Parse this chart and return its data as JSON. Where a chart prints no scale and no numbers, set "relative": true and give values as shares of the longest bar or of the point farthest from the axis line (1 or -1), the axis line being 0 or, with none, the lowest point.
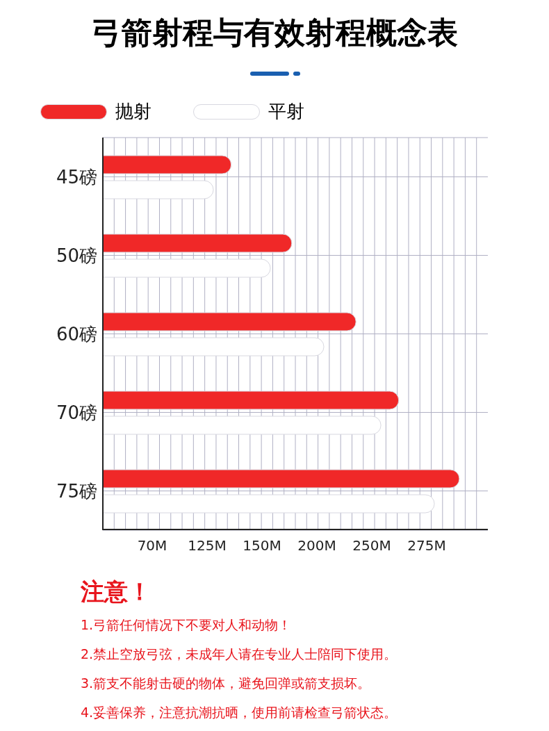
{
  "chart_data": {
    "type": "bar",
    "orientation": "horizontal",
    "title": "弓箭射程与有效射程概念表",
    "categories": [
      "45磅",
      "50磅",
      "60磅",
      "70磅",
      "75磅"
    ],
    "series": [
      {
        "name": "抛射",
        "color": "#f02828",
        "values": [
          0.36,
          0.53,
          0.71,
          0.83,
          1
        ]
      },
      {
        "name": "平射",
        "color": "#ffffff",
        "values": [
          0.31,
          0.47,
          0.62,
          0.78,
          0.93
        ]
      }
    ],
    "relative": true,
    "grid": true,
    "legend": "top left",
    "annotations": [
      "70M",
      "125M",
      "150M",
      "200M",
      "250M",
      "275M",
      "注意！",
      "1.弓箭任何情况下不要对人和动物！",
      "2.禁止空放弓弦，未成年人请在专业人士陪同下使用。",
      "3.箭支不能射击硬的物体，避免回弹或箭支损坏。",
      "4.妥善保养，注意抗潮抗晒，使用前请检查弓箭状态。"
    ]
  }
}
